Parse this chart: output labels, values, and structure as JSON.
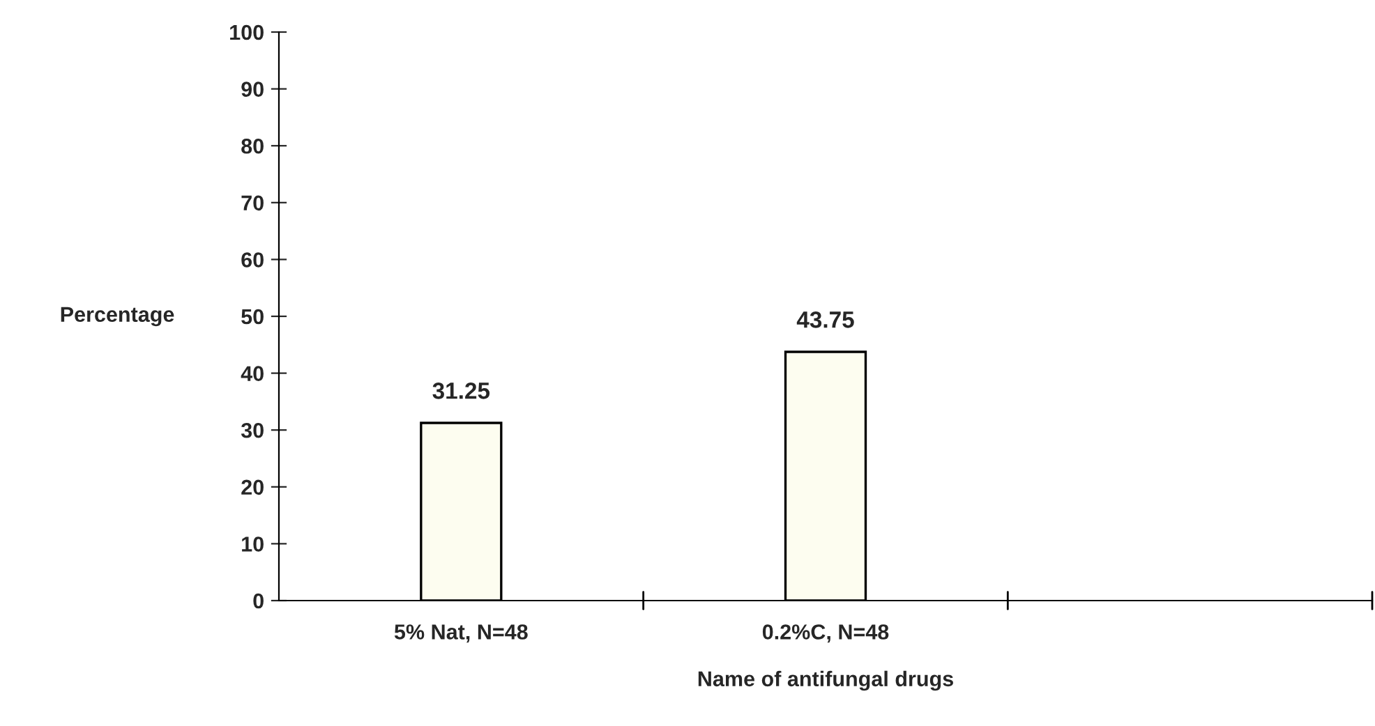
{
  "chart_data": {
    "type": "bar",
    "xlabel": "Name of antifungal drugs",
    "ylabel": "Percentage",
    "categories": [
      "5% Nat, N=48",
      "0.2%C, N=48",
      null
    ],
    "values": [
      31.25,
      43.75,
      null
    ],
    "color": "#fdfdf0",
    "ylim": [
      0,
      100
    ],
    "yticks": [
      0,
      10,
      20,
      30,
      40,
      50,
      60,
      70,
      80,
      90,
      100
    ],
    "data_labels": true,
    "grid": false,
    "legend": false
  }
}
